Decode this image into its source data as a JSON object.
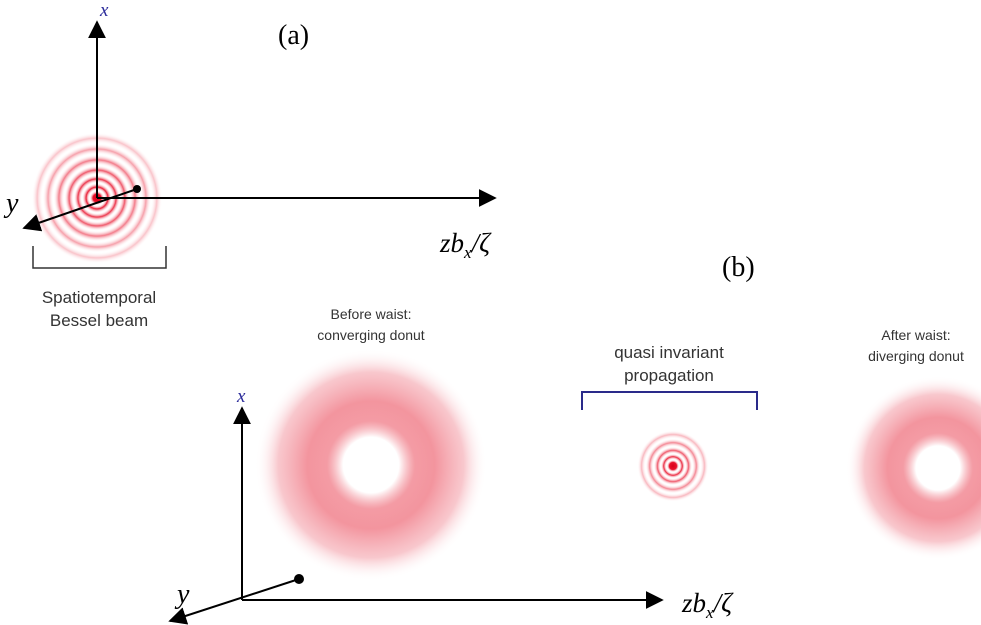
{
  "panel_a": {
    "label": "(a)",
    "axis_x": "x",
    "axis_y": "y",
    "axis_z_main": "zb",
    "axis_z_sub": "x",
    "axis_z_tail": "/ζ",
    "beam_caption_line1": "Spatiotemporal",
    "beam_caption_line2": "Bessel beam"
  },
  "panel_b": {
    "label": "(b)",
    "axis_x": "x",
    "axis_y": "y",
    "axis_z_main": "zb",
    "axis_z_sub": "x",
    "axis_z_tail": "/ζ",
    "before_line1": "Before waist:",
    "before_line2": "converging donut",
    "middle_line1": "quasi invariant",
    "middle_line2": "propagation",
    "after_line1": "After waist:",
    "after_line2": "diverging donut"
  },
  "colors": {
    "axis": "#000000",
    "axis_label": "#2b2b9a",
    "beam": "#e8102a",
    "bracket_a": "#333333",
    "bracket_b": "#2a2a8a",
    "caption": "#333333"
  }
}
